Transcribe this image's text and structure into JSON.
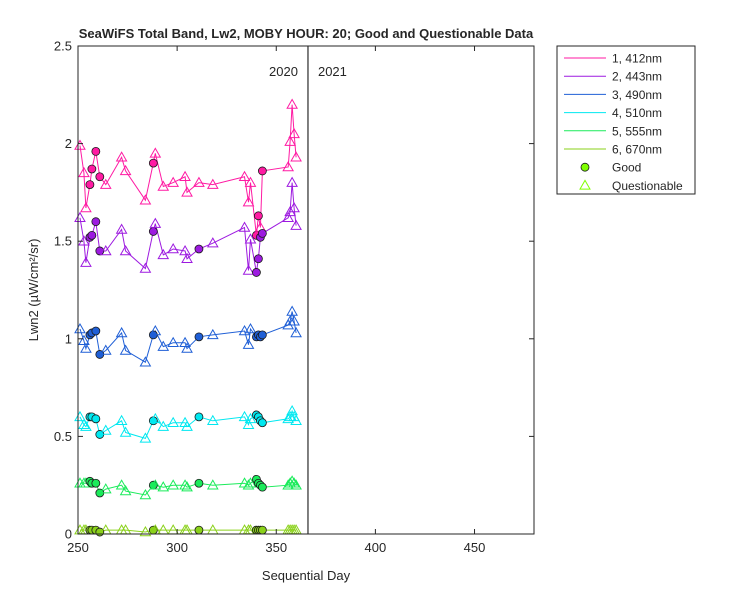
{
  "chart_data": {
    "type": "line",
    "title": "SeaWiFS Total Band, Lw2, MOBY HOUR: 20;  Good and Questionable Data",
    "xlabel": "Sequential Day",
    "ylabel": "Lwn2 (µW/cm²/sr)",
    "xlim": [
      250,
      480
    ],
    "ylim": [
      0,
      2.5
    ],
    "xticks": [
      "250",
      "300",
      "350",
      "400",
      "450"
    ],
    "yticks": [
      "0",
      "0.5",
      "1",
      "1.5",
      "2",
      "2.5"
    ],
    "grid": false,
    "legend_position": "outside-top-right",
    "year_divider": {
      "x": 366,
      "left_label": "2020",
      "right_label": "2021"
    },
    "legend": {
      "good_label": "Good",
      "questionable_label": "Questionable",
      "marker_color": "#7fff00"
    },
    "series": [
      {
        "name": "1, 412nm",
        "color": "#ff1aa3",
        "x": [
          251,
          253,
          254,
          256,
          257,
          259,
          261,
          264,
          272,
          274,
          284,
          288,
          289,
          293,
          298,
          304,
          305,
          311,
          318,
          334,
          336,
          337,
          340,
          341,
          342,
          343,
          356,
          357,
          358,
          359,
          360
        ],
        "y": [
          1.99,
          1.85,
          1.67,
          1.79,
          1.87,
          1.96,
          1.83,
          1.79,
          1.93,
          1.86,
          1.71,
          1.9,
          1.95,
          1.78,
          1.8,
          1.83,
          1.75,
          1.8,
          1.79,
          1.83,
          1.7,
          1.8,
          1.53,
          1.63,
          1.57,
          1.86,
          1.88,
          2.01,
          2.2,
          2.05,
          1.93
        ],
        "quality": [
          "q",
          "q",
          "q",
          "g",
          "g",
          "g",
          "g",
          "q",
          "q",
          "q",
          "q",
          "g",
          "q",
          "q",
          "q",
          "q",
          "q",
          "q",
          "q",
          "q",
          "q",
          "q",
          "g",
          "g",
          "q",
          "g",
          "q",
          "q",
          "q",
          "q",
          "q"
        ]
      },
      {
        "name": "2, 443nm",
        "color": "#9d1ae0",
        "x": [
          251,
          253,
          254,
          256,
          257,
          259,
          261,
          264,
          272,
          274,
          284,
          288,
          289,
          293,
          298,
          304,
          305,
          311,
          318,
          334,
          336,
          337,
          340,
          341,
          342,
          343,
          356,
          357,
          358,
          359,
          360
        ],
        "y": [
          1.62,
          1.5,
          1.39,
          1.52,
          1.53,
          1.6,
          1.45,
          1.45,
          1.56,
          1.45,
          1.36,
          1.55,
          1.59,
          1.43,
          1.46,
          1.45,
          1.41,
          1.46,
          1.49,
          1.57,
          1.35,
          1.51,
          1.34,
          1.41,
          1.52,
          1.54,
          1.62,
          1.65,
          1.8,
          1.67,
          1.58
        ],
        "quality": [
          "q",
          "q",
          "q",
          "g",
          "g",
          "g",
          "g",
          "q",
          "q",
          "q",
          "q",
          "g",
          "q",
          "q",
          "q",
          "q",
          "q",
          "g",
          "q",
          "q",
          "q",
          "q",
          "g",
          "g",
          "g",
          "g",
          "q",
          "q",
          "q",
          "q",
          "q"
        ]
      },
      {
        "name": "3, 490nm",
        "color": "#1f5fd6",
        "x": [
          251,
          253,
          254,
          256,
          257,
          259,
          261,
          264,
          272,
          274,
          284,
          288,
          289,
          293,
          298,
          304,
          305,
          311,
          318,
          334,
          336,
          337,
          340,
          341,
          342,
          343,
          356,
          357,
          358,
          359,
          360
        ],
        "y": [
          1.05,
          0.99,
          0.95,
          1.02,
          1.03,
          1.04,
          0.92,
          0.94,
          1.03,
          0.94,
          0.88,
          1.02,
          1.04,
          0.96,
          0.98,
          0.98,
          0.95,
          1.01,
          1.02,
          1.04,
          0.97,
          1.05,
          1.01,
          1.02,
          1.01,
          1.02,
          1.07,
          1.09,
          1.14,
          1.09,
          1.03
        ],
        "quality": [
          "q",
          "q",
          "q",
          "g",
          "g",
          "g",
          "g",
          "q",
          "q",
          "q",
          "q",
          "g",
          "q",
          "q",
          "q",
          "q",
          "q",
          "g",
          "q",
          "q",
          "q",
          "q",
          "g",
          "g",
          "g",
          "g",
          "q",
          "q",
          "q",
          "q",
          "q"
        ]
      },
      {
        "name": "4, 510nm",
        "color": "#00e8f0",
        "x": [
          251,
          253,
          254,
          256,
          257,
          259,
          261,
          264,
          272,
          274,
          284,
          288,
          289,
          293,
          298,
          304,
          305,
          311,
          318,
          334,
          336,
          337,
          340,
          341,
          342,
          343,
          356,
          357,
          358,
          359,
          360
        ],
        "y": [
          0.6,
          0.56,
          0.55,
          0.6,
          0.6,
          0.59,
          0.51,
          0.53,
          0.58,
          0.52,
          0.49,
          0.58,
          0.59,
          0.55,
          0.57,
          0.57,
          0.55,
          0.6,
          0.58,
          0.6,
          0.56,
          0.59,
          0.61,
          0.6,
          0.58,
          0.57,
          0.59,
          0.6,
          0.63,
          0.6,
          0.58
        ],
        "quality": [
          "q",
          "q",
          "q",
          "g",
          "g",
          "g",
          "g",
          "q",
          "q",
          "q",
          "q",
          "g",
          "q",
          "q",
          "q",
          "q",
          "q",
          "g",
          "q",
          "q",
          "q",
          "q",
          "g",
          "g",
          "g",
          "g",
          "q",
          "q",
          "q",
          "q",
          "q"
        ]
      },
      {
        "name": "5, 555nm",
        "color": "#1aeb5a",
        "x": [
          251,
          253,
          254,
          256,
          257,
          259,
          261,
          264,
          272,
          274,
          284,
          288,
          289,
          293,
          298,
          304,
          305,
          311,
          318,
          334,
          336,
          337,
          340,
          341,
          342,
          343,
          356,
          357,
          358,
          359,
          360
        ],
        "y": [
          0.26,
          0.26,
          0.26,
          0.27,
          0.26,
          0.26,
          0.21,
          0.23,
          0.25,
          0.22,
          0.2,
          0.25,
          0.25,
          0.24,
          0.25,
          0.25,
          0.24,
          0.26,
          0.25,
          0.26,
          0.25,
          0.26,
          0.28,
          0.26,
          0.25,
          0.24,
          0.25,
          0.26,
          0.27,
          0.26,
          0.25
        ],
        "quality": [
          "q",
          "q",
          "q",
          "g",
          "g",
          "g",
          "g",
          "q",
          "q",
          "q",
          "q",
          "g",
          "q",
          "q",
          "q",
          "q",
          "q",
          "g",
          "q",
          "q",
          "q",
          "q",
          "g",
          "g",
          "g",
          "g",
          "q",
          "q",
          "q",
          "q",
          "q"
        ]
      },
      {
        "name": "6, 670nm",
        "color": "#8ad11a",
        "x": [
          251,
          253,
          254,
          256,
          257,
          259,
          261,
          264,
          272,
          274,
          284,
          288,
          289,
          293,
          298,
          304,
          305,
          311,
          318,
          334,
          336,
          337,
          340,
          341,
          342,
          343,
          356,
          357,
          358,
          359,
          360
        ],
        "y": [
          0.02,
          0.02,
          0.02,
          0.02,
          0.02,
          0.02,
          0.01,
          0.02,
          0.02,
          0.02,
          0.01,
          0.02,
          0.02,
          0.02,
          0.02,
          0.02,
          0.02,
          0.02,
          0.02,
          0.02,
          0.02,
          0.02,
          0.02,
          0.02,
          0.02,
          0.02,
          0.02,
          0.02,
          0.02,
          0.02,
          0.02
        ],
        "quality": [
          "q",
          "q",
          "q",
          "g",
          "g",
          "g",
          "g",
          "q",
          "q",
          "q",
          "q",
          "g",
          "q",
          "q",
          "q",
          "q",
          "q",
          "g",
          "q",
          "q",
          "q",
          "q",
          "g",
          "g",
          "g",
          "g",
          "q",
          "q",
          "q",
          "q",
          "q"
        ]
      }
    ]
  }
}
